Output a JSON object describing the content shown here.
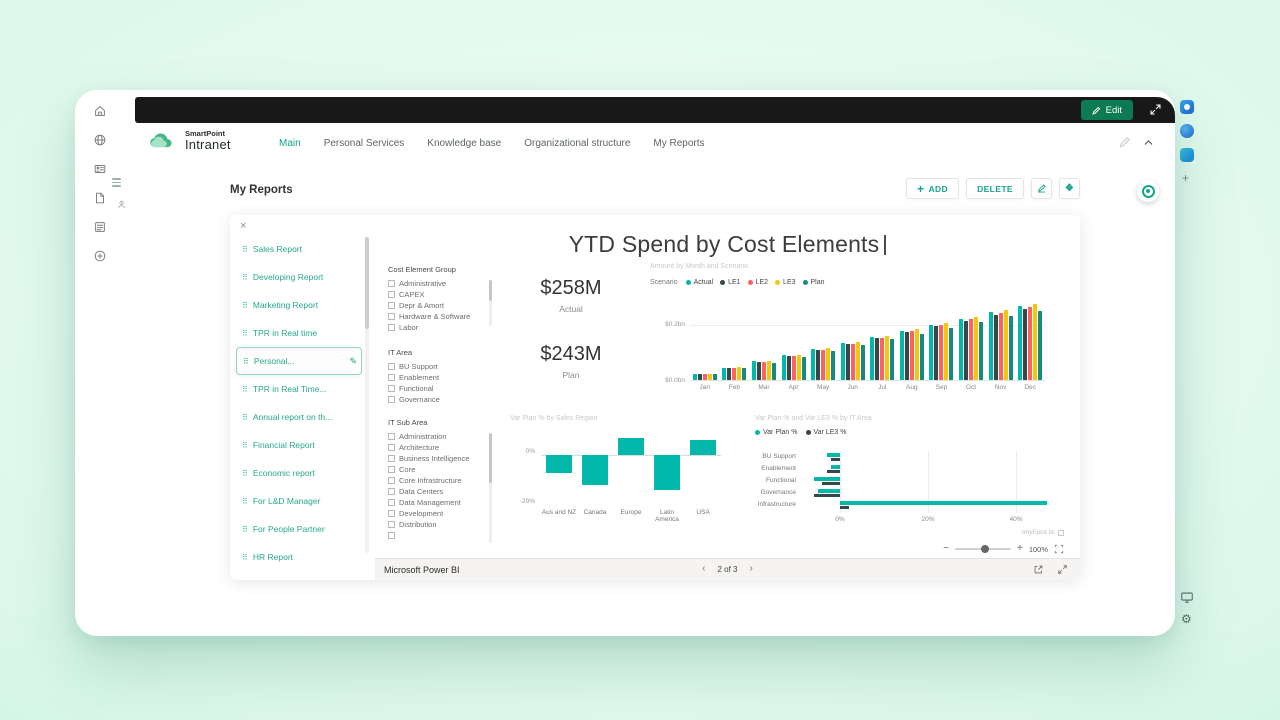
{
  "colors": {
    "accent": "#14a58c",
    "edit_button": "#0c7a52",
    "suite_bar": "#181818",
    "pbi_actual": "#01B8AA",
    "pbi_le1": "#374649",
    "pbi_le2": "#FD625E",
    "pbi_le3": "#F2C80F",
    "pbi_plan": "#168980"
  },
  "icons": {
    "close": "×",
    "drag_handle": "⠿",
    "edit_pencil": "✎",
    "add_plus": "+",
    "sparkle": "❖",
    "prev": "‹",
    "next": "›",
    "zoom_out": "−",
    "zoom_in": "+"
  },
  "suite_bar": {
    "edit": "Edit"
  },
  "logo": {
    "top": "SmartPoint",
    "bottom": "Intranet"
  },
  "nav": {
    "items": [
      {
        "label": "Main",
        "active": true
      },
      {
        "label": "Personal Services"
      },
      {
        "label": "Knowledge base"
      },
      {
        "label": "Organizational structure"
      },
      {
        "label": "My Reports"
      }
    ]
  },
  "page": {
    "title": "My Reports",
    "toolbar": {
      "add": "ADD",
      "delete": "DELETE"
    }
  },
  "report_list": {
    "items": [
      {
        "label": "Sales Report"
      },
      {
        "label": "Developing Report"
      },
      {
        "label": "Marketing Report"
      },
      {
        "label": "TPR in Real time"
      },
      {
        "label": "Personal...",
        "selected": true
      },
      {
        "label": "TPR in Real Time..."
      },
      {
        "label": "Annual report on th..."
      },
      {
        "label": "Financial Report"
      },
      {
        "label": "Economic report"
      },
      {
        "label": "For L&D Manager"
      },
      {
        "label": "For People Partner"
      },
      {
        "label": "HR Report"
      }
    ]
  },
  "report": {
    "title": "YTD Spend by Cost Elements",
    "slicers": [
      {
        "title": "Cost Element Group",
        "options": [
          "Administrative",
          "CAPEX",
          "Depr & Amort",
          "Hardware & Software",
          "Labor"
        ]
      },
      {
        "title": "IT Area",
        "options": [
          "BU Support",
          "Enablement",
          "Functional",
          "Governance"
        ]
      },
      {
        "title": "IT Sub Area",
        "clipped": true,
        "options": [
          "Administration",
          "Architecture",
          "Business Intelligence",
          "Core",
          "Core Infrastructure",
          "Data Centers",
          "Data Management",
          "Development",
          "Distribution"
        ]
      }
    ],
    "kpis": [
      {
        "value": "$258M",
        "label": "Actual"
      },
      {
        "value": "$243M",
        "label": "Plan"
      }
    ],
    "hint_text": "ohyEpce ilc",
    "zoom": {
      "value": "100%"
    }
  },
  "powerbi_footer": {
    "brand": "Microsoft Power BI",
    "page_label": "2 of 3"
  },
  "chart_data": [
    {
      "type": "bar",
      "subtype": "clustered-column",
      "title": "Amount by Month and Scenario",
      "legend_title": "Scenario",
      "legend_position": "top",
      "categories": [
        "Jan",
        "Feb",
        "Mar",
        "Apr",
        "May",
        "Jun",
        "Jul",
        "Aug",
        "Sep",
        "Oct",
        "Nov",
        "Dec"
      ],
      "series": [
        {
          "name": "Actual",
          "color": "#01B8AA",
          "values": [
            22,
            43,
            65,
            86,
            108,
            129,
            151,
            172,
            194,
            215,
            237,
            258
          ]
        },
        {
          "name": "LE1",
          "color": "#374649",
          "values": [
            21,
            42,
            63,
            83,
            104,
            125,
            146,
            167,
            188,
            208,
            229,
            250
          ]
        },
        {
          "name": "LE2",
          "color": "#FD625E",
          "values": [
            21,
            42,
            64,
            85,
            106,
            127,
            148,
            170,
            191,
            212,
            233,
            254
          ]
        },
        {
          "name": "LE3",
          "color": "#F2C80F",
          "values": [
            22,
            44,
            67,
            89,
            111,
            133,
            155,
            177,
            200,
            222,
            244,
            266
          ]
        },
        {
          "name": "Plan",
          "color": "#168980",
          "values": [
            20,
            41,
            61,
            81,
            101,
            122,
            142,
            162,
            182,
            203,
            223,
            243
          ]
        }
      ],
      "unit": "$M",
      "ylim": [
        0,
        280
      ],
      "yticks": [
        "$0.2bn",
        "$0.0bn"
      ],
      "grid": true
    },
    {
      "type": "bar",
      "subtype": "column",
      "title": "Var Plan % by Sales Region",
      "categories": [
        "Aus and NZ",
        "Canada",
        "Europe",
        "Latin America",
        "USA"
      ],
      "series": [
        {
          "name": "Var Plan %",
          "color": "#01B8AA",
          "values": [
            -7,
            -12,
            7,
            -14,
            6
          ]
        }
      ],
      "unit": "%",
      "ylim": [
        -20,
        10
      ],
      "yticks": [
        "0%",
        "-20%"
      ]
    },
    {
      "type": "bar",
      "subtype": "horizontal-clustered",
      "title": "Var Plan % and Var LE3 % by IT Area",
      "legend_position": "top",
      "categories": [
        "BU Support",
        "Enablement",
        "Functional",
        "Governance",
        "Infrastructure"
      ],
      "series": [
        {
          "name": "Var Plan %",
          "color": "#01B8AA",
          "values": [
            -3,
            -2,
            -6,
            -5,
            47
          ]
        },
        {
          "name": "Var LE3 %",
          "color": "#374649",
          "values": [
            -2,
            -3,
            -4,
            -6,
            2
          ]
        }
      ],
      "unit": "%",
      "xlim": [
        -10,
        50
      ],
      "xticks": [
        "0%",
        "20%",
        "40%"
      ]
    }
  ]
}
